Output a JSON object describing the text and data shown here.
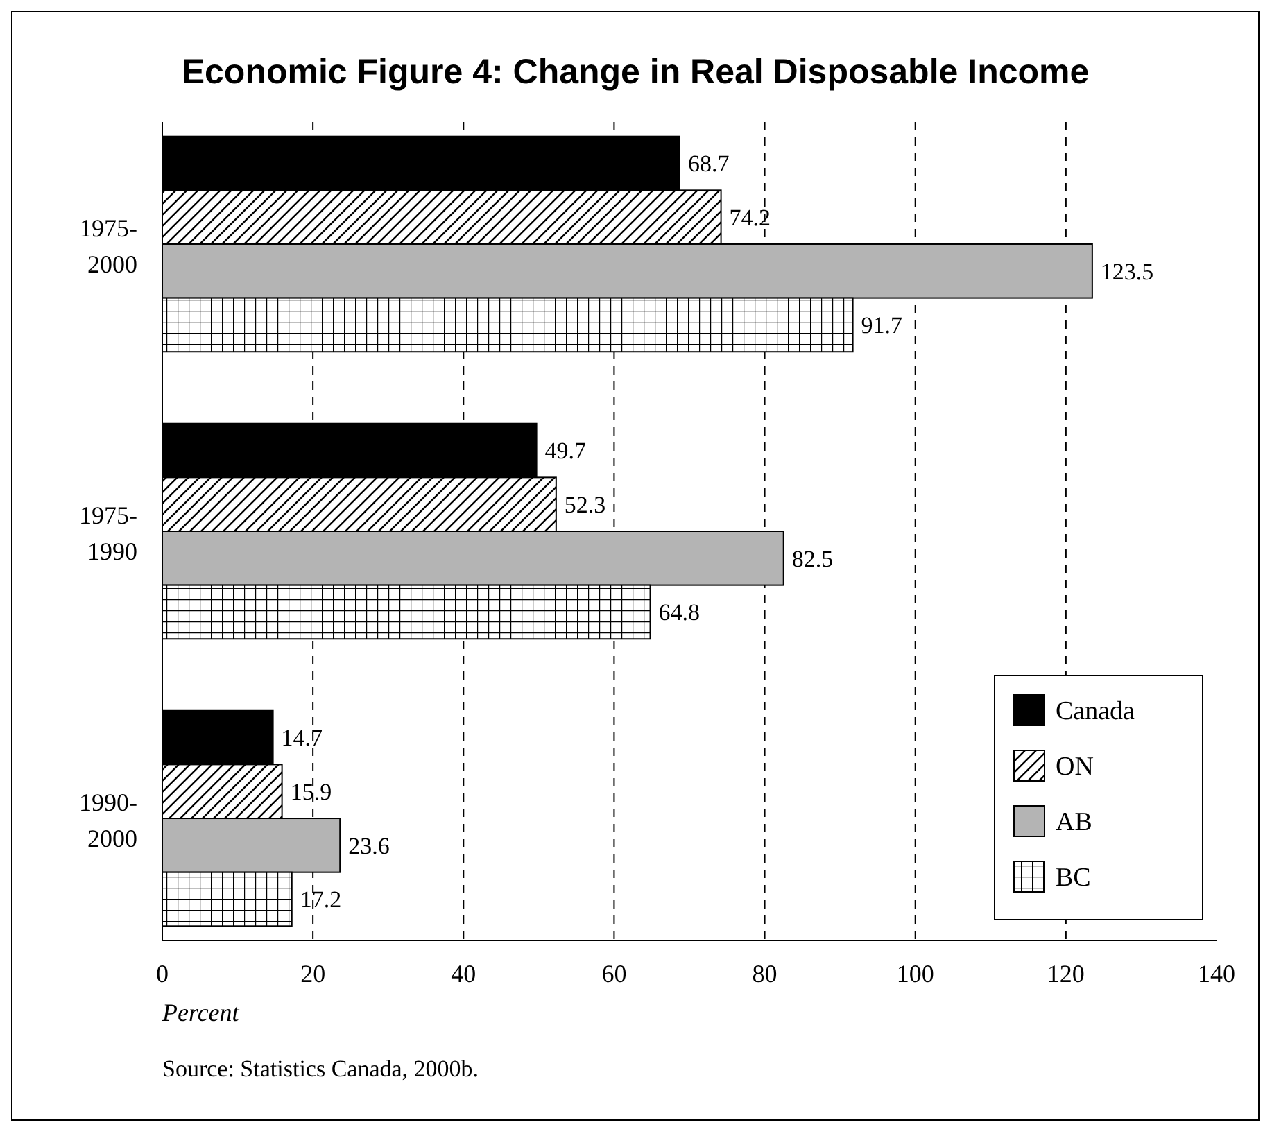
{
  "chart_data": {
    "type": "bar",
    "orientation": "horizontal",
    "title": "Economic Figure 4: Change in Real Disposable Income",
    "xlabel": "Percent",
    "categories": [
      "1975-2000",
      "1975-1990",
      "1990-2000"
    ],
    "series": [
      {
        "name": "Canada",
        "color": "#000000",
        "values": [
          68.7,
          49.7,
          14.7
        ]
      },
      {
        "name": "ON",
        "color": "#000000",
        "values": [
          74.2,
          52.3,
          15.9
        ]
      },
      {
        "name": "AB",
        "color": "#b4b4b4",
        "values": [
          123.5,
          82.5,
          23.6
        ]
      },
      {
        "name": "BC",
        "color": "#000000",
        "values": [
          91.7,
          64.8,
          17.2
        ]
      }
    ],
    "xlim": [
      0,
      140
    ],
    "xticks": [
      0,
      20,
      40,
      60,
      80,
      100,
      120,
      140
    ],
    "grid": "x",
    "line_style": "dashed",
    "legend": "bottom right",
    "data_labels": true,
    "annotations": [
      "Source: Statistics Canada, 2000b."
    ]
  }
}
